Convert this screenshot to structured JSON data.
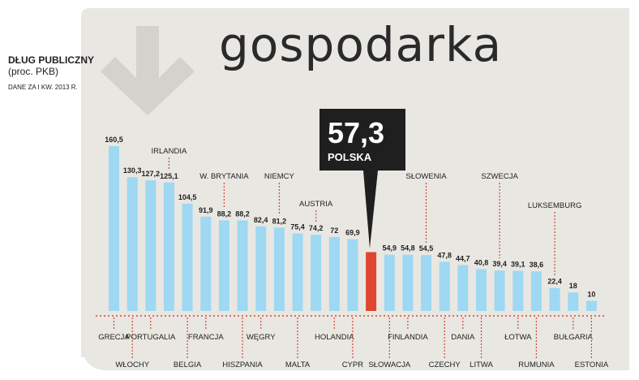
{
  "section_title": "gospodarka",
  "side": {
    "title": "DŁUG PUBLICZNY",
    "unit": "(proc. PKB)",
    "source": "DANE ZA I KW. 2013 R."
  },
  "highlight": {
    "value": "57,3",
    "label": "POLSKA"
  },
  "colors": {
    "bar": "#9ed8f2",
    "highlight_bar": "#e0462f",
    "callout": "#1f1f1f",
    "panel": "#e9e7e2",
    "arrow": "#d4d2cc",
    "leader": "#d2462f"
  },
  "chart_data": {
    "type": "bar",
    "title": "DŁUG PUBLICZNY",
    "ylabel": "(proc. PKB)",
    "categories": [
      "GRECJA",
      "WŁOCHY",
      "PORTUGALIA",
      "IRLANDIA",
      "BELGIA",
      "FRANCJA",
      "W. BRYTANIA",
      "HISZPANIA",
      "WĘGRY",
      "NIEMCY",
      "MALTA",
      "AUSTRIA",
      "HOLANDIA",
      "CYPR",
      "POLSKA",
      "SŁOWACJA",
      "FINLANDIA",
      "SŁOWENIA",
      "CZECHY",
      "DANIA",
      "LITWA",
      "SZWECJA",
      "ŁOTWA",
      "RUMUNIA",
      "LUKSEMBURG",
      "BUŁGARIA",
      "ESTONIA"
    ],
    "values": [
      160.5,
      130.3,
      127.2,
      125.1,
      104.5,
      91.9,
      88.2,
      88.2,
      82.4,
      81.2,
      75.4,
      74.2,
      72,
      69.9,
      57.3,
      54.9,
      54.8,
      54.5,
      47.8,
      44.7,
      40.8,
      39.4,
      39.1,
      38.6,
      22.4,
      18,
      10
    ],
    "value_labels": [
      "160,5",
      "130,3",
      "127,2",
      "125,1",
      "104,5",
      "91,9",
      "88,2",
      "88,2",
      "82,4",
      "81,2",
      "75,4",
      "74,2",
      "72",
      "69,9",
      "57,3",
      "54,9",
      "54,8",
      "54,5",
      "47,8",
      "44,7",
      "40,8",
      "39,4",
      "39,1",
      "38,6",
      "22,4",
      "18",
      "10"
    ],
    "highlight_index": 14,
    "ylim": [
      0,
      160.5
    ],
    "label_positions": [
      "below-1",
      "below-2",
      "below-1",
      "above",
      "below-2",
      "below-1",
      "above",
      "below-2",
      "below-1",
      "above",
      "below-2",
      "above",
      "below-1",
      "below-2",
      "none",
      "below-2",
      "below-1",
      "above",
      "below-2",
      "below-1",
      "below-2",
      "above",
      "below-1",
      "below-2",
      "above",
      "below-1",
      "below-2"
    ],
    "grid": false,
    "legend": "none"
  }
}
